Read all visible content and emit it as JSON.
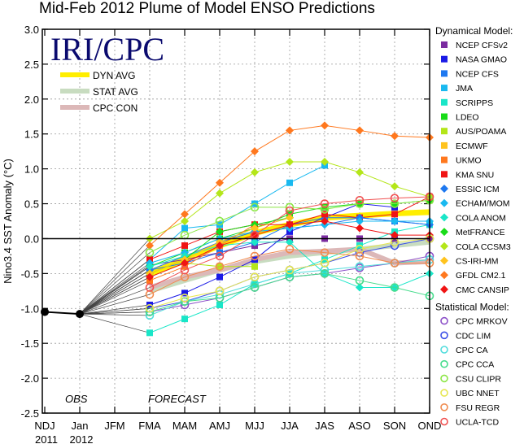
{
  "chart_data": {
    "type": "line",
    "title": "Mid-Feb 2012 Plume of Model ENSO Predictions",
    "logo": "IRI/CPC",
    "ylabel": "Nino3.4 SST Anomaly (°C)",
    "xlabel": "",
    "ylim": [
      -2.5,
      3.0
    ],
    "yticks": [
      "3.0",
      "2.5",
      "2.0",
      "1.5",
      "1.0",
      "0.5",
      "0.0",
      "-0.5",
      "-1.0",
      "-1.5",
      "-2.0",
      "-2.5"
    ],
    "ytick_values": [
      3.0,
      2.5,
      2.0,
      1.5,
      1.0,
      0.5,
      0.0,
      -0.5,
      -1.0,
      -1.5,
      -2.0,
      -2.5
    ],
    "categories": [
      "NDJ",
      "Jan",
      "JFM",
      "FMA",
      "MAM",
      "AMJ",
      "MJJ",
      "JJA",
      "JAS",
      "ASO",
      "SON",
      "OND"
    ],
    "year_labels": [
      {
        "at": "NDJ",
        "text": "2011"
      },
      {
        "at": "Jan",
        "text": "2012"
      }
    ],
    "annotations": {
      "obs": "OBS",
      "forecast": "FORECAST"
    },
    "grid": true,
    "observed": {
      "name": "OBS",
      "values": [
        -1.05,
        -1.08
      ],
      "color": "#000000"
    },
    "averages": [
      {
        "name": "DYN AVG",
        "color": "#ffee00",
        "values": [
          -0.5,
          -0.3,
          -0.1,
          0.08,
          0.2,
          0.3,
          0.33,
          0.36,
          0.38
        ]
      },
      {
        "name": "STAT AVG",
        "color": "#c8dcc0",
        "values": [
          -0.75,
          -0.6,
          -0.45,
          -0.33,
          -0.25,
          -0.2,
          -0.15,
          -0.1,
          -0.05
        ]
      },
      {
        "name": "CPC CON",
        "color": "#dcb8b8",
        "values": [
          -0.7,
          -0.55,
          -0.45,
          -0.3,
          -0.2,
          -0.18,
          -0.15,
          -0.35,
          -0.33
        ]
      }
    ],
    "legend_dynamical_title": "Dynamical Model:",
    "legend_statistical_title": "Statistical Model:",
    "series": [
      {
        "name": "NCEP CFSv2",
        "group": "dyn",
        "marker": "square",
        "color": "#7b2ca0",
        "values": [
          -0.38,
          -0.3,
          -0.2,
          -0.1,
          0.0,
          0.0,
          0.0,
          0.0,
          0.0
        ]
      },
      {
        "name": "NASA GMAO",
        "group": "dyn",
        "marker": "square",
        "color": "#1a1ae6",
        "values": [
          -0.95,
          -0.78,
          -0.55,
          -0.3,
          0.1,
          0.3,
          0.5,
          0.45,
          null
        ]
      },
      {
        "name": "NCEP CFS",
        "group": "dyn",
        "marker": "square",
        "color": "#1e78f0",
        "values": [
          -0.45,
          -0.35,
          -0.2,
          -0.05,
          0.2,
          0.3,
          0.3,
          0.25,
          0.2
        ]
      },
      {
        "name": "JMA",
        "group": "dyn",
        "marker": "square",
        "color": "#19b9f0",
        "values": [
          -0.3,
          0.15,
          0.2,
          0.5,
          0.8,
          1.05,
          null,
          null,
          null
        ]
      },
      {
        "name": "SCRIPPS",
        "group": "dyn",
        "marker": "square",
        "color": "#19e6c8",
        "values": [
          -1.35,
          -1.15,
          -0.95,
          -0.65,
          -0.5,
          -0.3,
          -0.1,
          0.1,
          0.2
        ]
      },
      {
        "name": "LDEO",
        "group": "dyn",
        "marker": "square",
        "color": "#19dc19",
        "values": [
          -0.4,
          -0.2,
          0.0,
          0.15,
          0.35,
          0.45,
          0.5,
          0.5,
          0.55
        ]
      },
      {
        "name": "AUS/POAMA",
        "group": "dyn",
        "marker": "square",
        "color": "#b4e619",
        "values": [
          -0.55,
          -0.35,
          -0.4,
          -0.4,
          null,
          null,
          null,
          null,
          null
        ]
      },
      {
        "name": "ECMWF",
        "group": "dyn",
        "marker": "square",
        "color": "#ffc31e",
        "values": [
          -0.45,
          -0.25,
          -0.05,
          0.15,
          null,
          null,
          null,
          null,
          null
        ]
      },
      {
        "name": "UKMO",
        "group": "dyn",
        "marker": "square",
        "color": "#ff781e",
        "values": [
          -0.6,
          -0.4,
          -0.1,
          0.2,
          null,
          null,
          null,
          null,
          null
        ]
      },
      {
        "name": "KMA SNU",
        "group": "dyn",
        "marker": "square",
        "color": "#f01414",
        "values": [
          -0.3,
          -0.1,
          0.1,
          0.2,
          0.2,
          0.35,
          0.3,
          0.35,
          0.6
        ]
      },
      {
        "name": "ESSIC ICM",
        "group": "dyn",
        "marker": "diamond",
        "color": "#1e78f0",
        "values": [
          -0.45,
          -0.25,
          -0.05,
          0.1,
          0.15,
          0.2,
          0.3,
          0.25,
          0.2
        ]
      },
      {
        "name": "ECHAM/MOM",
        "group": "dyn",
        "marker": "diamond",
        "color": "#19b9f0",
        "values": [
          -0.35,
          -0.2,
          0.0,
          0.1,
          0.15,
          0.2,
          0.25,
          0.25,
          0.25
        ]
      },
      {
        "name": "COLA ANOM",
        "group": "dyn",
        "marker": "diamond",
        "color": "#19e6c8",
        "values": [
          -0.4,
          -0.25,
          -0.1,
          -0.05,
          -0.05,
          -0.5,
          -0.7,
          -0.7,
          -0.5
        ]
      },
      {
        "name": "MetFRANCE",
        "group": "dyn",
        "marker": "diamond",
        "color": "#19dc19",
        "values": [
          -0.5,
          -0.3,
          0.1,
          0.2,
          0.3,
          null,
          null,
          null,
          null
        ]
      },
      {
        "name": "COLA CCSM3",
        "group": "dyn",
        "marker": "diamond",
        "color": "#b4e619",
        "values": [
          0.0,
          0.25,
          0.65,
          0.95,
          1.1,
          1.1,
          0.95,
          0.75,
          0.6
        ]
      },
      {
        "name": "CS-IRI-MM",
        "group": "dyn",
        "marker": "diamond",
        "color": "#ffc31e",
        "values": [
          -0.5,
          -0.3,
          -0.05,
          0.15,
          0.3,
          null,
          null,
          null,
          null
        ]
      },
      {
        "name": "GFDL CM2.1",
        "group": "dyn",
        "marker": "diamond",
        "color": "#ff781e",
        "values": [
          -0.1,
          0.35,
          0.8,
          1.25,
          1.55,
          1.62,
          1.55,
          1.47,
          1.45
        ]
      },
      {
        "name": "CMC CANSIP",
        "group": "dyn",
        "marker": "diamond",
        "color": "#f01414",
        "values": [
          -0.55,
          -0.35,
          -0.1,
          0.05,
          0.2,
          0.25,
          0.15,
          0.05,
          0.05
        ]
      },
      {
        "name": "CPC MRKOV",
        "group": "stat",
        "marker": "circle",
        "color": "#8c50c8",
        "values": [
          -1.05,
          -0.95,
          -0.85,
          -0.7,
          -0.55,
          -0.5,
          -0.42,
          -0.35,
          -0.25
        ]
      },
      {
        "name": "CDC LIM",
        "group": "stat",
        "marker": "circle",
        "color": "#3c50e6",
        "values": [
          -1.0,
          -0.9,
          -0.75,
          -0.55,
          -0.45,
          -0.35,
          -0.2,
          -0.1,
          0.0
        ]
      },
      {
        "name": "CPC CA",
        "group": "stat",
        "marker": "circle",
        "color": "#50dcdc",
        "values": [
          -1.1,
          -0.9,
          -0.8,
          -0.65,
          -0.5,
          -0.45,
          -0.4,
          -0.35,
          -0.3
        ]
      },
      {
        "name": "CPC CCA",
        "group": "stat",
        "marker": "circle",
        "color": "#46dc8c",
        "values": [
          -1.05,
          -0.9,
          -0.85,
          -0.7,
          -0.55,
          -0.5,
          -0.6,
          -0.7,
          -0.82
        ]
      },
      {
        "name": "CSU CLIPR",
        "group": "stat",
        "marker": "circle",
        "color": "#8ce646",
        "values": [
          -0.2,
          0.05,
          0.25,
          0.45,
          0.45,
          0.42,
          0.5,
          0.5,
          0.55
        ]
      },
      {
        "name": "UBC NNET",
        "group": "stat",
        "marker": "circle",
        "color": "#e6e650",
        "values": [
          -1.0,
          -0.85,
          -0.75,
          -0.55,
          -0.45,
          -0.35,
          -0.15,
          -0.05,
          0.0
        ]
      },
      {
        "name": "FSU REGR",
        "group": "stat",
        "marker": "circle",
        "color": "#f08c50",
        "values": [
          -0.8,
          -0.55,
          -0.4,
          -0.25,
          -0.15,
          -0.2,
          -0.25,
          -0.35,
          -0.35
        ]
      },
      {
        "name": "UCLA-TCD",
        "group": "stat",
        "marker": "circle",
        "color": "#f05050",
        "values": [
          -0.7,
          -0.45,
          -0.25,
          0.05,
          0.4,
          0.5,
          0.55,
          0.58,
          0.6
        ]
      }
    ]
  }
}
